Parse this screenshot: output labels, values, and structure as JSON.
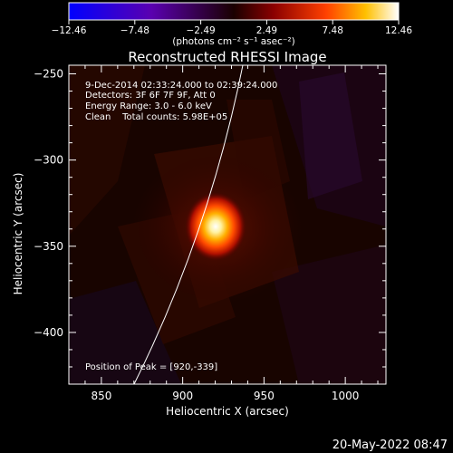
{
  "colorbar": {
    "tick_labels": [
      "−12.46",
      "−7.48",
      "−2.49",
      "2.49",
      "7.48",
      "12.46"
    ],
    "unit_label": "(photons cm⁻² s⁻¹ asec⁻²)",
    "range": [
      -12.46,
      12.46
    ]
  },
  "chart_data": {
    "type": "heatmap",
    "title": "Reconstructed RHESSI Image",
    "xlabel": "Heliocentric X (arcsec)",
    "ylabel": "Heliocentric Y (arcsec)",
    "xlim": [
      830,
      1025
    ],
    "ylim": [
      -430,
      -245
    ],
    "x_ticks": [
      850,
      900,
      950,
      1000
    ],
    "x_tick_labels": [
      "850",
      "900",
      "950",
      "1000"
    ],
    "y_ticks": [
      -250,
      -300,
      -350,
      -400
    ],
    "y_tick_labels": [
      "−250",
      "−300",
      "−350",
      "−400"
    ],
    "peak": {
      "x": 920,
      "y": -339
    },
    "annotations": {
      "time": "9-Dec-2014 02:33:24.000 to 02:39:24.000",
      "detectors": "Detectors: 3F 6F 7F 9F, Att 0",
      "energy": "Energy Range: 3.0 - 6.0 keV",
      "clean": "Clean    Total counts: 5.98E+05",
      "peak_text": "Position of Peak = [920,-339]"
    }
  },
  "footer": {
    "timestamp": "20-May-2022 08:47"
  }
}
